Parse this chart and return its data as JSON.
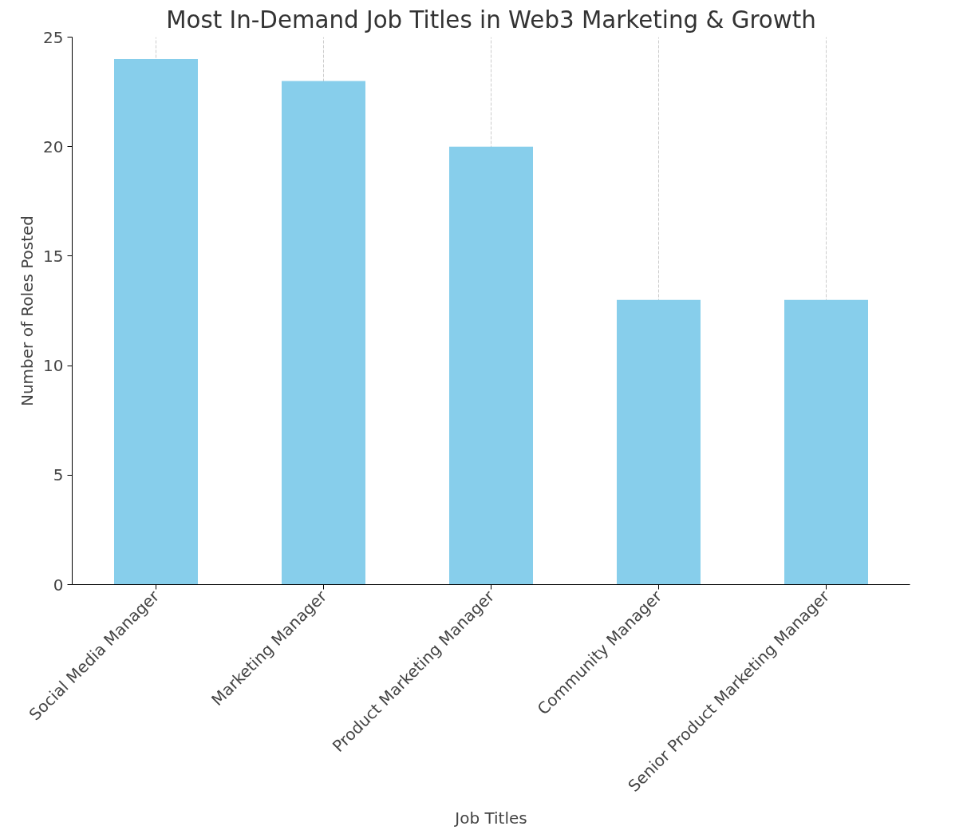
{
  "chart_data": {
    "type": "bar",
    "title": "Most In-Demand Job Titles in Web3 Marketing & Growth",
    "xlabel": "Job Titles",
    "ylabel": "Number of Roles Posted",
    "categories": [
      "Social Media Manager",
      "Marketing Manager",
      "Product Marketing Manager",
      "Community Manager",
      "Senior Product Marketing Manager"
    ],
    "values": [
      24,
      23,
      20,
      13,
      13
    ],
    "color": "#87ceeb",
    "ylim": [
      0,
      25
    ],
    "yticks": [
      0,
      5,
      10,
      15,
      20,
      25
    ],
    "grid": "x"
  }
}
